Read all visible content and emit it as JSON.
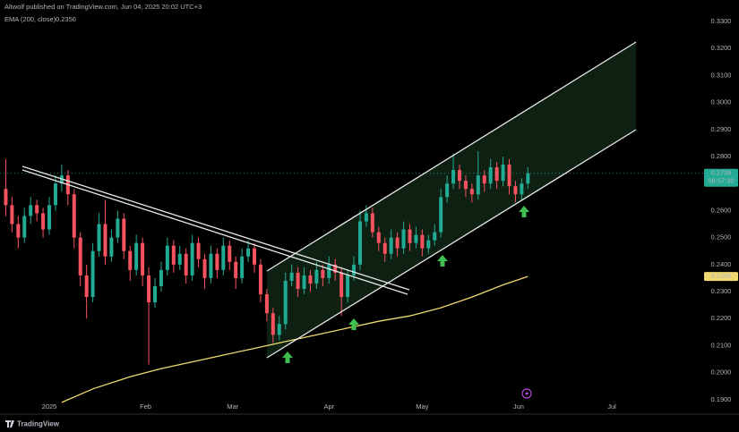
{
  "chart_data": {
    "type": "candlestick",
    "header": "Altwolf published on TradingView.com, Jun 04, 2025 20:02 UTC+3",
    "legend": {
      "name": "EMA (200, close)",
      "value": "0.2356"
    },
    "last_price_label": "0.2738",
    "countdown": "06:57:30",
    "ema_label": "0.2356",
    "footer": "TradingView",
    "up_color": "#22ab94",
    "down_color": "#f7525f",
    "ema_color": "#f0d971",
    "grid": false,
    "xlim": [
      -0.93,
      112.2
    ],
    "ylim": [
      0.1873,
      0.3333
    ],
    "xticks": [
      {
        "value": 7,
        "label": "2025"
      },
      {
        "value": 22.5,
        "label": "Feb"
      },
      {
        "value": 36.5,
        "label": "Mar"
      },
      {
        "value": 52,
        "label": "Apr"
      },
      {
        "value": 67,
        "label": "May"
      },
      {
        "value": 82.5,
        "label": "Jun"
      },
      {
        "value": 97.5,
        "label": "Jul"
      }
    ],
    "yticks": [
      {
        "value": 0.33,
        "label": "0.3300"
      },
      {
        "value": 0.32,
        "label": "0.3200"
      },
      {
        "value": 0.31,
        "label": "0.3100"
      },
      {
        "value": 0.3,
        "label": "0.3000"
      },
      {
        "value": 0.29,
        "label": "0.2900"
      },
      {
        "value": 0.28,
        "label": "0.2800"
      },
      {
        "value": 0.26,
        "label": "0.2600"
      },
      {
        "value": 0.25,
        "label": "0.2500"
      },
      {
        "value": 0.24,
        "label": "0.2400"
      },
      {
        "value": 0.23,
        "label": "0.2300"
      },
      {
        "value": 0.22,
        "label": "0.2200"
      },
      {
        "value": 0.21,
        "label": "0.2100"
      },
      {
        "value": 0.2,
        "label": "0.2000"
      },
      {
        "value": 0.19,
        "label": "0.1900"
      }
    ],
    "open": [
      0.268,
      0.262,
      0.255,
      0.25,
      0.258,
      0.262,
      0.259,
      0.253,
      0.262,
      0.27,
      0.273,
      0.266,
      0.25,
      0.236,
      0.228,
      0.245,
      0.255,
      0.243,
      0.25,
      0.257,
      0.245,
      0.238,
      0.248,
      0.236,
      0.226,
      0.232,
      0.238,
      0.247,
      0.24,
      0.244,
      0.236,
      0.248,
      0.242,
      0.235,
      0.244,
      0.238,
      0.247,
      0.241,
      0.235,
      0.243,
      0.246,
      0.24,
      0.229,
      0.222,
      0.214,
      0.218,
      0.234,
      0.237,
      0.231,
      0.236,
      0.233,
      0.238,
      0.235,
      0.24,
      0.237,
      0.228,
      0.236,
      0.24,
      0.256,
      0.259,
      0.252,
      0.248,
      0.244,
      0.25,
      0.246,
      0.253,
      0.248,
      0.251,
      0.246,
      0.249,
      0.252,
      0.265,
      0.27,
      0.275,
      0.271,
      0.268,
      0.266,
      0.273,
      0.27,
      0.276,
      0.271,
      0.277,
      0.269,
      0.266,
      0.27
    ],
    "high": [
      0.279,
      0.265,
      0.258,
      0.261,
      0.265,
      0.264,
      0.261,
      0.265,
      0.273,
      0.277,
      0.275,
      0.268,
      0.252,
      0.24,
      0.248,
      0.259,
      0.264,
      0.253,
      0.26,
      0.259,
      0.247,
      0.251,
      0.25,
      0.239,
      0.235,
      0.241,
      0.25,
      0.249,
      0.247,
      0.246,
      0.251,
      0.25,
      0.244,
      0.247,
      0.246,
      0.25,
      0.249,
      0.243,
      0.246,
      0.249,
      0.248,
      0.242,
      0.231,
      0.224,
      0.221,
      0.237,
      0.24,
      0.239,
      0.239,
      0.238,
      0.241,
      0.24,
      0.243,
      0.242,
      0.239,
      0.238,
      0.243,
      0.26,
      0.262,
      0.261,
      0.254,
      0.25,
      0.253,
      0.252,
      0.256,
      0.255,
      0.254,
      0.253,
      0.251,
      0.255,
      0.268,
      0.273,
      0.281,
      0.277,
      0.273,
      0.27,
      0.282,
      0.275,
      0.279,
      0.278,
      0.28,
      0.279,
      0.271,
      0.272,
      0.276
    ],
    "low": [
      0.258,
      0.252,
      0.246,
      0.248,
      0.255,
      0.256,
      0.25,
      0.251,
      0.26,
      0.267,
      0.262,
      0.246,
      0.232,
      0.22,
      0.226,
      0.243,
      0.24,
      0.241,
      0.248,
      0.242,
      0.234,
      0.236,
      0.232,
      0.203,
      0.224,
      0.23,
      0.236,
      0.237,
      0.238,
      0.233,
      0.234,
      0.239,
      0.231,
      0.233,
      0.235,
      0.236,
      0.238,
      0.231,
      0.233,
      0.241,
      0.237,
      0.226,
      0.219,
      0.211,
      0.212,
      0.216,
      0.232,
      0.228,
      0.229,
      0.23,
      0.231,
      0.232,
      0.233,
      0.234,
      0.221,
      0.226,
      0.234,
      0.238,
      0.254,
      0.25,
      0.245,
      0.241,
      0.242,
      0.243,
      0.244,
      0.245,
      0.246,
      0.243,
      0.244,
      0.247,
      0.25,
      0.263,
      0.268,
      0.268,
      0.265,
      0.263,
      0.264,
      0.267,
      0.268,
      0.268,
      0.269,
      0.266,
      0.263,
      0.264,
      0.268
    ],
    "close": [
      0.262,
      0.255,
      0.25,
      0.258,
      0.262,
      0.259,
      0.253,
      0.262,
      0.27,
      0.273,
      0.266,
      0.25,
      0.236,
      0.228,
      0.245,
      0.255,
      0.243,
      0.25,
      0.257,
      0.245,
      0.238,
      0.248,
      0.236,
      0.226,
      0.232,
      0.238,
      0.247,
      0.24,
      0.244,
      0.236,
      0.248,
      0.242,
      0.235,
      0.244,
      0.238,
      0.247,
      0.241,
      0.235,
      0.243,
      0.246,
      0.24,
      0.229,
      0.222,
      0.214,
      0.218,
      0.234,
      0.237,
      0.231,
      0.236,
      0.233,
      0.238,
      0.235,
      0.24,
      0.237,
      0.228,
      0.236,
      0.24,
      0.256,
      0.259,
      0.252,
      0.248,
      0.244,
      0.25,
      0.246,
      0.253,
      0.248,
      0.251,
      0.246,
      0.249,
      0.252,
      0.265,
      0.27,
      0.275,
      0.271,
      0.268,
      0.266,
      0.273,
      0.27,
      0.276,
      0.271,
      0.277,
      0.269,
      0.266,
      0.27,
      0.2738
    ],
    "ema": {
      "x": [
        9,
        14,
        20,
        25,
        30,
        35,
        40,
        45,
        50,
        55,
        60,
        65,
        70,
        75,
        80,
        84
      ],
      "values": [
        0.189,
        0.194,
        0.1985,
        0.2015,
        0.204,
        0.2065,
        0.209,
        0.2115,
        0.214,
        0.2165,
        0.219,
        0.221,
        0.224,
        0.228,
        0.2325,
        0.2356
      ]
    }
  }
}
